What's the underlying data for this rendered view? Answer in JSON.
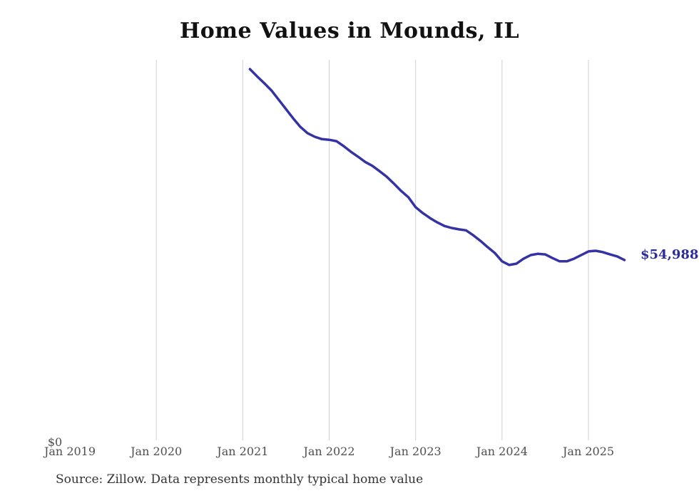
{
  "page": {
    "background": "#ffffff"
  },
  "chart_data": {
    "type": "line",
    "title": "Home Values in Mounds, IL",
    "source_note": "Source: Zillow. Data represents monthly typical home value",
    "end_label": "$54,988",
    "y_zero_label": "$0",
    "xlabel": "",
    "ylabel": "",
    "legend": "none",
    "grid": "vertical-only",
    "x_ticks": [
      "Jan 2019",
      "Jan 2020",
      "Jan 2021",
      "Jan 2022",
      "Jan 2023",
      "Jan 2024",
      "Jan 2025"
    ],
    "ylim": [
      0,
      115600
    ],
    "series": {
      "dates": [
        "2021-02",
        "2021-03",
        "2021-04",
        "2021-05",
        "2021-06",
        "2021-07",
        "2021-08",
        "2021-09",
        "2021-10",
        "2021-11",
        "2021-12",
        "2022-01",
        "2022-02",
        "2022-03",
        "2022-04",
        "2022-05",
        "2022-06",
        "2022-07",
        "2022-08",
        "2022-09",
        "2022-10",
        "2022-11",
        "2022-12",
        "2023-01",
        "2023-02",
        "2023-03",
        "2023-04",
        "2023-05",
        "2023-06",
        "2023-07",
        "2023-08",
        "2023-09",
        "2023-10",
        "2023-11",
        "2023-12",
        "2024-01",
        "2024-02",
        "2024-03",
        "2024-04",
        "2024-05",
        "2024-06",
        "2024-07",
        "2024-08",
        "2024-09",
        "2024-10",
        "2024-11",
        "2024-12",
        "2025-01",
        "2025-02",
        "2025-03",
        "2025-04",
        "2025-05",
        "2025-06"
      ],
      "values": [
        112800,
        110600,
        108500,
        106300,
        103500,
        100700,
        97900,
        95300,
        93400,
        92300,
        91600,
        91400,
        91000,
        89500,
        87800,
        86300,
        84700,
        83500,
        81900,
        80200,
        78100,
        75900,
        74000,
        71000,
        69200,
        67700,
        66400,
        65300,
        64700,
        64300,
        64000,
        62500,
        60800,
        58900,
        57100,
        54600,
        53500,
        53900,
        55400,
        56500,
        56900,
        56700,
        55600,
        54600,
        54600,
        55400,
        56500,
        57600,
        57800,
        57400,
        56700,
        56100,
        54988
      ]
    },
    "colors": {
      "line": "#3533a4",
      "end_label": "#2c2a9c",
      "gridline": "#d0d0d0",
      "title": "#111111",
      "tick_label": "#4f4f4f",
      "source": "#333333"
    }
  }
}
